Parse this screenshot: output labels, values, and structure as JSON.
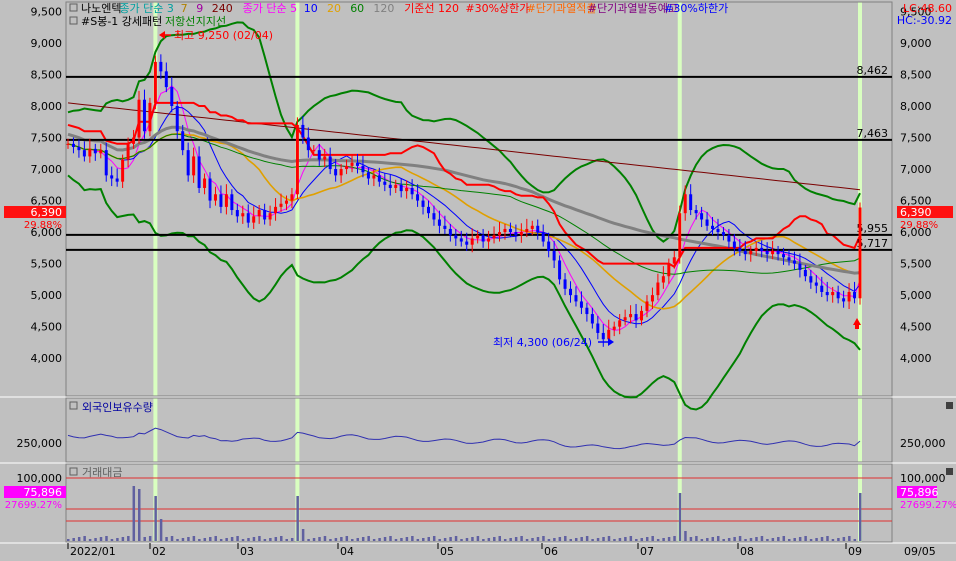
{
  "colors": {
    "bg": "#c0c0c0",
    "candle_up": "#ff0000",
    "candle_down": "#0000ff",
    "band": "#008000",
    "baseline": "#7f7f7f",
    "highlight": "#d9ffc0",
    "tag_red": "#ff1010",
    "tag_magenta": "#ff00ff",
    "volume": "#6060a0"
  },
  "legend": {
    "row1": [
      {
        "text": "나노엔텍",
        "color": "#000000"
      },
      {
        "text": "종가 단순 3",
        "color": "#00a0a0"
      },
      {
        "text": "7",
        "color": "#b08000"
      },
      {
        "text": "9",
        "color": "#a000a0"
      },
      {
        "text": "240",
        "color": "#7a0000"
      },
      {
        "text": "종가 단순 5",
        "color": "#ff00ff"
      },
      {
        "text": "10",
        "color": "#0000ff"
      },
      {
        "text": "20",
        "color": "#e0a000"
      },
      {
        "text": "60",
        "color": "#008000"
      },
      {
        "text": "120",
        "color": "#808080"
      },
      {
        "text": "기준선 120",
        "color": "#ff0000"
      },
      {
        "text": "#30%상한가",
        "color": "#ff0000"
      },
      {
        "text": "#단기과열적출",
        "color": "#ff6600"
      },
      {
        "text": "#단기과열발동예고",
        "color": "#800080"
      },
      {
        "text": "#30%하한가",
        "color": "#0000ff"
      }
    ],
    "row2": [
      {
        "text": "#S봉-1 강세패턴",
        "color": "#000000"
      },
      {
        "text": "저항선",
        "color": "#008000"
      },
      {
        "text": "지지선",
        "color": "#008000"
      }
    ]
  },
  "corner_labels": {
    "lc": "LC:48.60",
    "hc": "HC:-30.92"
  },
  "panels": {
    "investor_title": "외국인보유수량",
    "volume_title": "거래대금"
  },
  "annotations": {
    "high": "최고 9,250 (02/04)",
    "low": "최저 4,300 (06/24)"
  },
  "price_tag": {
    "value": "6,390",
    "pct": "29.88%"
  },
  "volume_tag": {
    "value": "75,896",
    "pct": "27699.27%"
  },
  "chart_data": {
    "type": "candlestick",
    "symbol": "나노엔텍",
    "x_labels": [
      "2022/01",
      "02",
      "03",
      "04",
      "05",
      "06",
      "07",
      "08",
      "09",
      "09/05"
    ],
    "price_axis": {
      "ticks": [
        4000,
        4500,
        5000,
        5500,
        6000,
        6500,
        7000,
        7500,
        8000,
        8500,
        9000,
        9500
      ],
      "labels": [
        "4,000",
        "4,500",
        "5,000",
        "5,500",
        "6,000",
        "6,500",
        "7,000",
        "7,500",
        "8,000",
        "8,500",
        "9,000",
        "9,500"
      ],
      "range": [
        3400,
        9650
      ]
    },
    "horizontal_lines": [
      {
        "value": 8462,
        "label": "8,462"
      },
      {
        "value": 7463,
        "label": "7,463"
      },
      {
        "value": 5955,
        "label": "5,955"
      },
      {
        "value": 5717,
        "label": "5,717"
      }
    ],
    "high": 9250,
    "low": 4300,
    "last": 6390,
    "close": [
      7400,
      7350,
      7300,
      7200,
      7320,
      7250,
      7300,
      6900,
      6850,
      6800,
      7150,
      7400,
      7500,
      8100,
      7600,
      8050,
      8700,
      8550,
      8300,
      8000,
      7600,
      7300,
      6900,
      7200,
      6700,
      6850,
      6500,
      6600,
      6400,
      6600,
      6350,
      6250,
      6300,
      6150,
      6250,
      6350,
      6200,
      6300,
      6400,
      6450,
      6500,
      6600,
      7700,
      7500,
      7300,
      7300,
      7150,
      7200,
      7000,
      6900,
      7000,
      7050,
      7100,
      7050,
      6950,
      6850,
      6900,
      6800,
      6750,
      6700,
      6750,
      6650,
      6700,
      6600,
      6500,
      6400,
      6300,
      6200,
      6100,
      6050,
      5950,
      5900,
      5850,
      5800,
      5900,
      5950,
      5850,
      5900,
      5950,
      6000,
      6050,
      6000,
      5950,
      6000,
      6050,
      6100,
      6000,
      5850,
      5700,
      5550,
      5250,
      5100,
      5000,
      4900,
      4800,
      4700,
      4550,
      4400,
      4300,
      4450,
      4500,
      4600,
      4650,
      4700,
      4600,
      4750,
      4900,
      5000,
      5200,
      5300,
      5500,
      5600,
      6300,
      6600,
      6350,
      6300,
      6200,
      6100,
      6050,
      6000,
      5950,
      5850,
      5750,
      5700,
      5650,
      5700,
      5750,
      5700,
      5650,
      5700,
      5650,
      5600,
      5550,
      5500,
      5400,
      5300,
      5200,
      5150,
      5050,
      5000,
      5050,
      4950,
      4900,
      5050,
      4950,
      6390
    ],
    "ma_lines": [
      {
        "name": "5",
        "color": "#ff00ff"
      },
      {
        "name": "10",
        "color": "#0000ff"
      },
      {
        "name": "20",
        "color": "#e0a000"
      },
      {
        "name": "60",
        "color": "#008000"
      },
      {
        "name": "120",
        "color": "#808080"
      },
      {
        "name": "240",
        "color": "#7a0000"
      }
    ],
    "investor_axis": {
      "ticks": [
        250000
      ],
      "labels": [
        "250,000"
      ]
    },
    "volume_axis": {
      "ticks": [
        100000
      ],
      "labels": [
        "100,000"
      ]
    }
  }
}
